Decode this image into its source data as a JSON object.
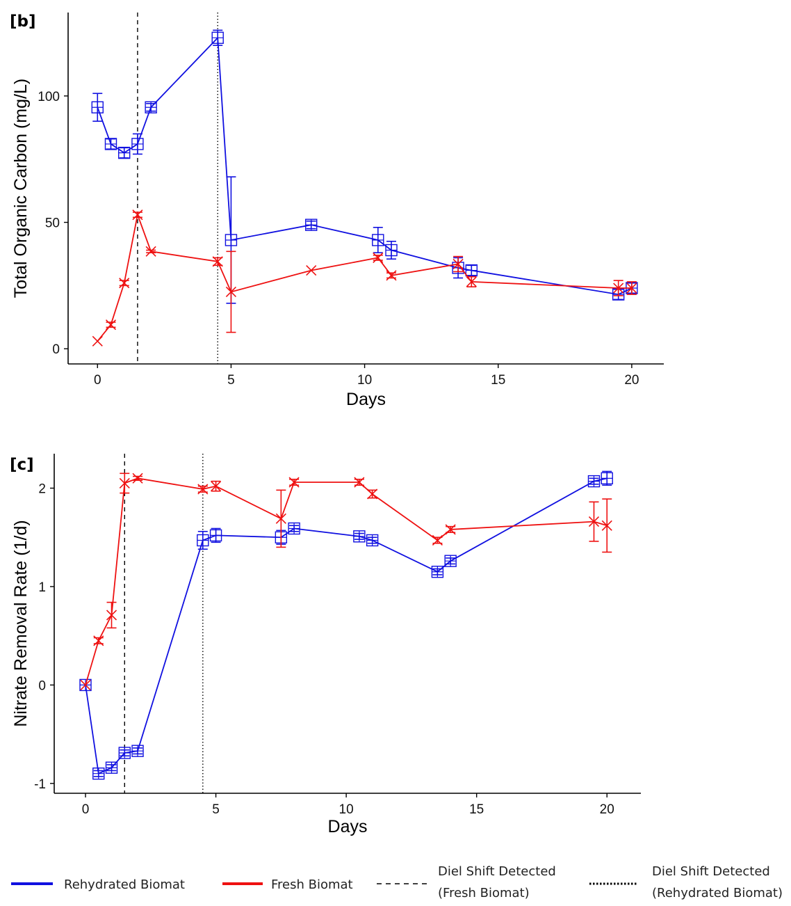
{
  "chart_data": [
    {
      "type": "line",
      "panel_label": "[b]",
      "xlabel": "Days",
      "ylabel": "Total Organic Carbon (mg/L)",
      "xlim": [
        -1.1,
        21.2
      ],
      "ylim": [
        -6,
        133
      ],
      "xticks": [
        0,
        5,
        10,
        15,
        20
      ],
      "yticks": [
        0,
        50,
        100
      ],
      "vlines": [
        {
          "x": 1.5,
          "style": "dashed"
        },
        {
          "x": 4.5,
          "style": "dotted"
        }
      ],
      "series": [
        {
          "name": "Rehydrated Biomat",
          "color": "#1010e0",
          "marker": "square-cross",
          "points": [
            {
              "x": 0,
              "y": 95.5,
              "err": 5.5
            },
            {
              "x": 0.5,
              "y": 81,
              "err": 2
            },
            {
              "x": 1,
              "y": 77.5,
              "err": 2
            },
            {
              "x": 1.5,
              "y": 81,
              "err": 4
            },
            {
              "x": 2,
              "y": 95.5,
              "err": 1.5
            },
            {
              "x": 4.5,
              "y": 123,
              "err": 3
            },
            {
              "x": 5,
              "y": 43,
              "err": 25
            },
            {
              "x": 8,
              "y": 49,
              "err": 1.5
            },
            {
              "x": 10.5,
              "y": 43,
              "err": 5
            },
            {
              "x": 11,
              "y": 39,
              "err": 3.5
            },
            {
              "x": 13.5,
              "y": 32,
              "err": 4
            },
            {
              "x": 14,
              "y": 31,
              "err": 2
            },
            {
              "x": 19.5,
              "y": 21.5,
              "err": 2
            },
            {
              "x": 20,
              "y": 24,
              "err": 2
            }
          ]
        },
        {
          "name": "Fresh Biomat",
          "color": "#ee1111",
          "marker": "x",
          "points": [
            {
              "x": 0,
              "y": 3,
              "err": 0
            },
            {
              "x": 0.5,
              "y": 9.5,
              "err": 1
            },
            {
              "x": 1,
              "y": 26,
              "err": 1
            },
            {
              "x": 1.5,
              "y": 53,
              "err": 1
            },
            {
              "x": 2,
              "y": 38.5,
              "err": 0.5
            },
            {
              "x": 4.5,
              "y": 34.5,
              "err": 1.5
            },
            {
              "x": 5,
              "y": 22.5,
              "err": 16
            },
            {
              "x": 8,
              "y": 31,
              "err": 0
            },
            {
              "x": 10.5,
              "y": 36,
              "err": 1
            },
            {
              "x": 11,
              "y": 29,
              "err": 1
            },
            {
              "x": 13.5,
              "y": 33.5,
              "err": 3
            },
            {
              "x": 14,
              "y": 26.5,
              "err": 2
            },
            {
              "x": 19.5,
              "y": 24,
              "err": 3
            },
            {
              "x": 20,
              "y": 24,
              "err": 2.5
            }
          ]
        }
      ]
    },
    {
      "type": "line",
      "panel_label": "[c]",
      "xlabel": "Days",
      "ylabel": "Nitrate Removal Rate (1/d)",
      "xlim": [
        -1.2,
        21.3
      ],
      "ylim": [
        -1.1,
        2.35
      ],
      "xticks": [
        0,
        5,
        10,
        15,
        20
      ],
      "yticks": [
        -1,
        0,
        1,
        2
      ],
      "vlines": [
        {
          "x": 1.5,
          "style": "dashed"
        },
        {
          "x": 4.5,
          "style": "dotted"
        }
      ],
      "series": [
        {
          "name": "Rehydrated Biomat",
          "color": "#1010e0",
          "marker": "square-cross",
          "points": [
            {
              "x": 0,
              "y": 0,
              "err": 0
            },
            {
              "x": 0.5,
              "y": -0.9,
              "err": 0.03
            },
            {
              "x": 1,
              "y": -0.84,
              "err": 0.03
            },
            {
              "x": 1.5,
              "y": -0.69,
              "err": 0.03
            },
            {
              "x": 2,
              "y": -0.67,
              "err": 0.03
            },
            {
              "x": 4.5,
              "y": 1.47,
              "err": 0.09
            },
            {
              "x": 5,
              "y": 1.52,
              "err": 0.07
            },
            {
              "x": 7.5,
              "y": 1.5,
              "err": 0.07
            },
            {
              "x": 8,
              "y": 1.59,
              "err": 0.03
            },
            {
              "x": 10.5,
              "y": 1.51,
              "err": 0.03
            },
            {
              "x": 11,
              "y": 1.47,
              "err": 0.03
            },
            {
              "x": 13.5,
              "y": 1.15,
              "err": 0.03
            },
            {
              "x": 14,
              "y": 1.26,
              "err": 0.03
            },
            {
              "x": 19.5,
              "y": 2.07,
              "err": 0.03
            },
            {
              "x": 20,
              "y": 2.1,
              "err": 0.07
            }
          ]
        },
        {
          "name": "Fresh Biomat",
          "color": "#ee1111",
          "marker": "x",
          "points": [
            {
              "x": 0,
              "y": 0,
              "err": 0
            },
            {
              "x": 0.5,
              "y": 0.45,
              "err": 0.03
            },
            {
              "x": 1,
              "y": 0.71,
              "err": 0.13
            },
            {
              "x": 1.5,
              "y": 2.05,
              "err": 0.1
            },
            {
              "x": 2,
              "y": 2.1,
              "err": 0.02
            },
            {
              "x": 4.5,
              "y": 1.99,
              "err": 0.03
            },
            {
              "x": 5,
              "y": 2.02,
              "err": 0.05
            },
            {
              "x": 7.5,
              "y": 1.69,
              "err": 0.29
            },
            {
              "x": 8,
              "y": 2.06,
              "err": 0.03
            },
            {
              "x": 10.5,
              "y": 2.06,
              "err": 0.03
            },
            {
              "x": 11,
              "y": 1.94,
              "err": 0.04
            },
            {
              "x": 13.5,
              "y": 1.47,
              "err": 0.03
            },
            {
              "x": 14,
              "y": 1.58,
              "err": 0.03
            },
            {
              "x": 19.5,
              "y": 1.66,
              "err": 0.2
            },
            {
              "x": 20,
              "y": 1.62,
              "err": 0.27
            }
          ]
        }
      ]
    }
  ],
  "legend": {
    "items": [
      {
        "label_lines": [
          "Rehydrated Biomat"
        ],
        "style": "solid-blue"
      },
      {
        "label_lines": [
          "Fresh Biomat"
        ],
        "style": "solid-red"
      },
      {
        "label_lines": [
          "Diel Shift Detected",
          "(Fresh Biomat)"
        ],
        "style": "dashed"
      },
      {
        "label_lines": [
          "Diel Shift Detected",
          "(Rehydrated Biomat)"
        ],
        "style": "dotted"
      }
    ]
  },
  "colors": {
    "rehydrated": "#1010e0",
    "fresh": "#ee1111"
  }
}
